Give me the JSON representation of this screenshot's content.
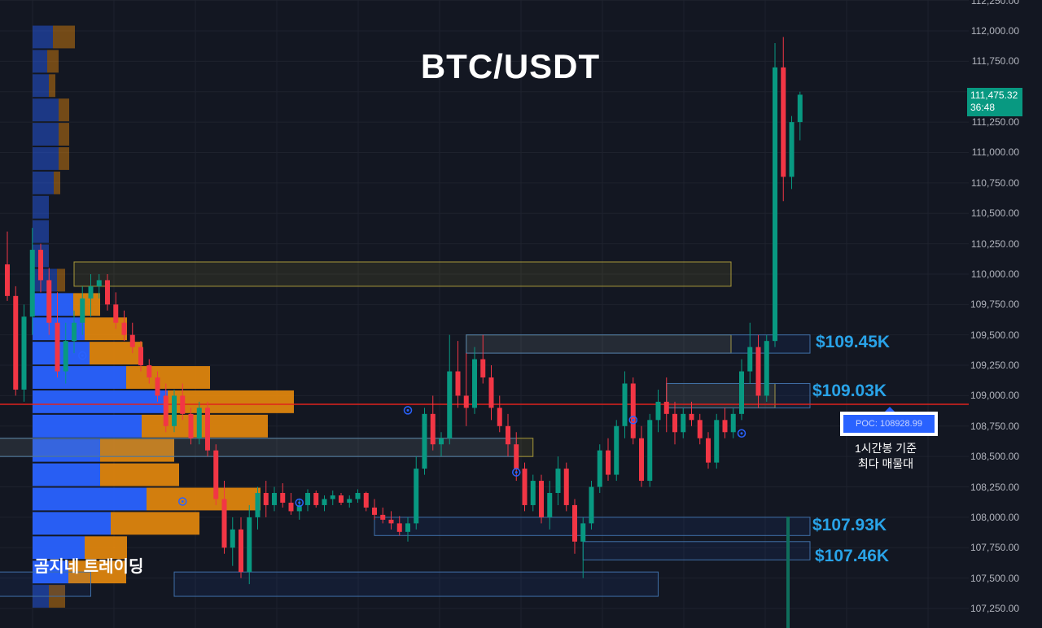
{
  "title": "BTC/USDT",
  "watermark": "곰지네 트레이딩",
  "last_price": "111,475.32",
  "countdown": "36:48",
  "poc_label": "POC: 108928.99",
  "poc_note_line1": "1시간봉 기준",
  "poc_note_line2": "최다 매물대",
  "zone_labels": [
    "$109.45K",
    "$109.03K",
    "$107.93K",
    "$107.46K"
  ],
  "y_axis_labels": [
    "112,250.00",
    "112,000.00",
    "111,750.00",
    "111,500.00",
    "111,250.00",
    "111,000.00",
    "110,750.00",
    "110,500.00",
    "110,250.00",
    "110,000.00",
    "109,750.00",
    "109,500.00",
    "109,250.00",
    "109,000.00",
    "108,750.00",
    "108,500.00",
    "108,250.00",
    "108,000.00",
    "107,750.00",
    "107,500.00",
    "107,250.00"
  ],
  "colors": {
    "background": "#131722",
    "up": "#089981",
    "down": "#f23645",
    "poc_line": "#e0221c",
    "zone_blue": "#29a3e8",
    "volume_buy": "#2962ff",
    "volume_sell": "#e88a0c",
    "zone_yellow": "#a99a3a"
  },
  "chart_data": {
    "type": "candlestick",
    "symbol": "BTC/USDT",
    "timeframe": "1h",
    "ylim": [
      107150,
      112250
    ],
    "last_price": 111475.32,
    "poc": 108928.99,
    "candles": [
      [
        110080,
        110350,
        109780,
        109820
      ],
      [
        109820,
        109900,
        109000,
        109050
      ],
      [
        109050,
        109750,
        108950,
        109650
      ],
      [
        109650,
        110380,
        109500,
        110200
      ],
      [
        110200,
        110250,
        109850,
        109950
      ],
      [
        109950,
        110050,
        109500,
        109600
      ],
      [
        109600,
        109850,
        109150,
        109200
      ],
      [
        109200,
        109600,
        109100,
        109450
      ],
      [
        109450,
        109700,
        109350,
        109600
      ],
      [
        109600,
        109900,
        109500,
        109800
      ],
      [
        109800,
        110000,
        109650,
        109900
      ],
      [
        109900,
        110000,
        109800,
        109950
      ],
      [
        109950,
        110000,
        109700,
        109750
      ],
      [
        109750,
        109850,
        109550,
        109600
      ],
      [
        109600,
        109700,
        109450,
        109500
      ],
      [
        109500,
        109600,
        109350,
        109400
      ],
      [
        109400,
        109450,
        109200,
        109250
      ],
      [
        109250,
        109300,
        109100,
        109150
      ],
      [
        109150,
        109200,
        108950,
        109000
      ],
      [
        109000,
        109100,
        108700,
        108750
      ],
      [
        108750,
        109050,
        108700,
        109000
      ],
      [
        109000,
        109100,
        108800,
        108850
      ],
      [
        108850,
        108900,
        108600,
        108650
      ],
      [
        108650,
        108950,
        108600,
        108900
      ],
      [
        108900,
        108950,
        108500,
        108550
      ],
      [
        108550,
        108600,
        108100,
        108150
      ],
      [
        108150,
        108300,
        107700,
        107750
      ],
      [
        107750,
        108000,
        107600,
        107900
      ],
      [
        107900,
        108000,
        107500,
        107550
      ],
      [
        107550,
        108100,
        107450,
        108000
      ],
      [
        108000,
        108250,
        107900,
        108200
      ],
      [
        108200,
        108300,
        108000,
        108100
      ],
      [
        108100,
        108250,
        108050,
        108200
      ],
      [
        108200,
        108280,
        108080,
        108120
      ],
      [
        108120,
        108200,
        108020,
        108050
      ],
      [
        108050,
        108150,
        107980,
        108100
      ],
      [
        108100,
        108230,
        108050,
        108200
      ],
      [
        108200,
        108220,
        108080,
        108100
      ],
      [
        108100,
        108180,
        108050,
        108150
      ],
      [
        108150,
        108220,
        108100,
        108180
      ],
      [
        108180,
        108200,
        108100,
        108120
      ],
      [
        108120,
        108180,
        108080,
        108150
      ],
      [
        108150,
        108230,
        108120,
        108200
      ],
      [
        108200,
        108210,
        108050,
        108080
      ],
      [
        108080,
        108150,
        107980,
        108020
      ],
      [
        108020,
        108080,
        107950,
        107980
      ],
      [
        107980,
        108050,
        107900,
        107950
      ],
      [
        107950,
        108010,
        107850,
        107880
      ],
      [
        107880,
        108000,
        107800,
        107950
      ],
      [
        107950,
        108500,
        107900,
        108400
      ],
      [
        108400,
        108900,
        108350,
        108850
      ],
      [
        108850,
        109000,
        108550,
        108600
      ],
      [
        108600,
        108700,
        108500,
        108650
      ],
      [
        108650,
        109500,
        108600,
        109200
      ],
      [
        109200,
        109450,
        108900,
        109000
      ],
      [
        109000,
        109350,
        108750,
        108900
      ],
      [
        108900,
        109400,
        108850,
        109300
      ],
      [
        109300,
        109500,
        109100,
        109150
      ],
      [
        109150,
        109250,
        108800,
        108900
      ],
      [
        108900,
        109000,
        108700,
        108750
      ],
      [
        108750,
        108850,
        108500,
        108600
      ],
      [
        108600,
        108700,
        108300,
        108400
      ],
      [
        108400,
        108450,
        108050,
        108100
      ],
      [
        108100,
        108350,
        108050,
        108300
      ],
      [
        108300,
        108350,
        107950,
        108000
      ],
      [
        108000,
        108300,
        107900,
        108200
      ],
      [
        108200,
        108500,
        108100,
        108400
      ],
      [
        108400,
        108450,
        108050,
        108100
      ],
      [
        108100,
        108150,
        107700,
        107800
      ],
      [
        107800,
        108000,
        107500,
        107950
      ],
      [
        107950,
        108300,
        107900,
        108250
      ],
      [
        108250,
        108600,
        108200,
        108550
      ],
      [
        108550,
        108650,
        108300,
        108350
      ],
      [
        108350,
        108800,
        108300,
        108750
      ],
      [
        108750,
        109200,
        108650,
        109100
      ],
      [
        109100,
        109150,
        108600,
        108650
      ],
      [
        108650,
        108750,
        108250,
        108300
      ],
      [
        108300,
        108850,
        108250,
        108800
      ],
      [
        108800,
        109050,
        108700,
        108950
      ],
      [
        108950,
        109150,
        108700,
        108850
      ],
      [
        108850,
        108950,
        108600,
        108700
      ],
      [
        108700,
        108900,
        108650,
        108850
      ],
      [
        108850,
        108950,
        108750,
        108800
      ],
      [
        108800,
        108850,
        108600,
        108650
      ],
      [
        108650,
        108700,
        108400,
        108450
      ],
      [
        108450,
        108850,
        108400,
        108800
      ],
      [
        108800,
        108900,
        108650,
        108700
      ],
      [
        108700,
        108900,
        108650,
        108850
      ],
      [
        108850,
        109300,
        108800,
        109200
      ],
      [
        109200,
        109600,
        109100,
        109400
      ],
      [
        109400,
        109500,
        108900,
        109000
      ],
      [
        109000,
        109500,
        108950,
        109450
      ],
      [
        109450,
        111900,
        109400,
        111700
      ],
      [
        111700,
        111950,
        110600,
        110800
      ],
      [
        110800,
        111300,
        110700,
        111250
      ],
      [
        111250,
        111500,
        111100,
        111475.32
      ]
    ],
    "volume_profile": [
      {
        "price": 111950,
        "buy": 25,
        "sell": 27
      },
      {
        "price": 111750,
        "buy": 18,
        "sell": 14
      },
      {
        "price": 111550,
        "buy": 20,
        "sell": 8
      },
      {
        "price": 111350,
        "buy": 32,
        "sell": 13
      },
      {
        "price": 111150,
        "buy": 32,
        "sell": 13
      },
      {
        "price": 110950,
        "buy": 32,
        "sell": 13
      },
      {
        "price": 110750,
        "buy": 26,
        "sell": 8
      },
      {
        "price": 110550,
        "buy": 20,
        "sell": 0
      },
      {
        "price": 110350,
        "buy": 20,
        "sell": 0
      },
      {
        "price": 110150,
        "buy": 20,
        "sell": 0
      },
      {
        "price": 109950,
        "buy": 30,
        "sell": 10
      },
      {
        "price": 109750,
        "buy": 50,
        "sell": 33
      },
      {
        "price": 109550,
        "buy": 64,
        "sell": 52
      },
      {
        "price": 109350,
        "buy": 70,
        "sell": 65
      },
      {
        "price": 109150,
        "buy": 115,
        "sell": 103
      },
      {
        "price": 108950,
        "buy": 166,
        "sell": 155
      },
      {
        "price": 108750,
        "buy": 134,
        "sell": 155
      },
      {
        "price": 108550,
        "buy": 83,
        "sell": 91
      },
      {
        "price": 108350,
        "buy": 83,
        "sell": 97
      },
      {
        "price": 108150,
        "buy": 140,
        "sell": 140
      },
      {
        "price": 107950,
        "buy": 96,
        "sell": 109
      },
      {
        "price": 107750,
        "buy": 64,
        "sell": 52
      },
      {
        "price": 107550,
        "buy": 44,
        "sell": 71
      },
      {
        "price": 107350,
        "buy": 20,
        "sell": 20
      }
    ],
    "zones": [
      {
        "top": 110100,
        "bottom": 109900,
        "start": 8,
        "end": null,
        "color": "yellow"
      },
      {
        "top": 109500,
        "bottom": 109350,
        "start": 55,
        "end": null,
        "color": "yellow"
      },
      {
        "top": 109500,
        "bottom": 109350,
        "start": 55,
        "end": "axis",
        "color": "blue"
      },
      {
        "top": 109100,
        "bottom": 108900,
        "start": 79,
        "end": 92,
        "color": "yellow"
      },
      {
        "top": 109100,
        "bottom": 108900,
        "start": 79,
        "end": "axis",
        "color": "blue"
      },
      {
        "top": 108650,
        "bottom": 108500,
        "start": -5,
        "end": 63,
        "color": "yellow"
      },
      {
        "top": 108650,
        "bottom": 108500,
        "start": -5,
        "end": 61,
        "color": "blue"
      },
      {
        "top": 108000,
        "bottom": 107850,
        "start": 44,
        "end": "axis",
        "color": "blue"
      },
      {
        "top": 107800,
        "bottom": 107650,
        "start": 69,
        "end": "axis",
        "color": "blue"
      },
      {
        "top": 107550,
        "bottom": 107350,
        "start": 20,
        "end": 78,
        "color": "blue"
      },
      {
        "top": 107550,
        "bottom": 107350,
        "start": -5,
        "end": 10,
        "color": "blue"
      }
    ],
    "markers": [
      {
        "candle": 9,
        "price": 109330
      },
      {
        "candle": 21,
        "price": 108130
      },
      {
        "candle": 48,
        "price": 108880
      },
      {
        "candle": 61,
        "price": 108370
      },
      {
        "candle": 75,
        "price": 108800
      },
      {
        "candle": 88,
        "price": 108690
      },
      {
        "candle": 35,
        "price": 108120
      }
    ]
  }
}
